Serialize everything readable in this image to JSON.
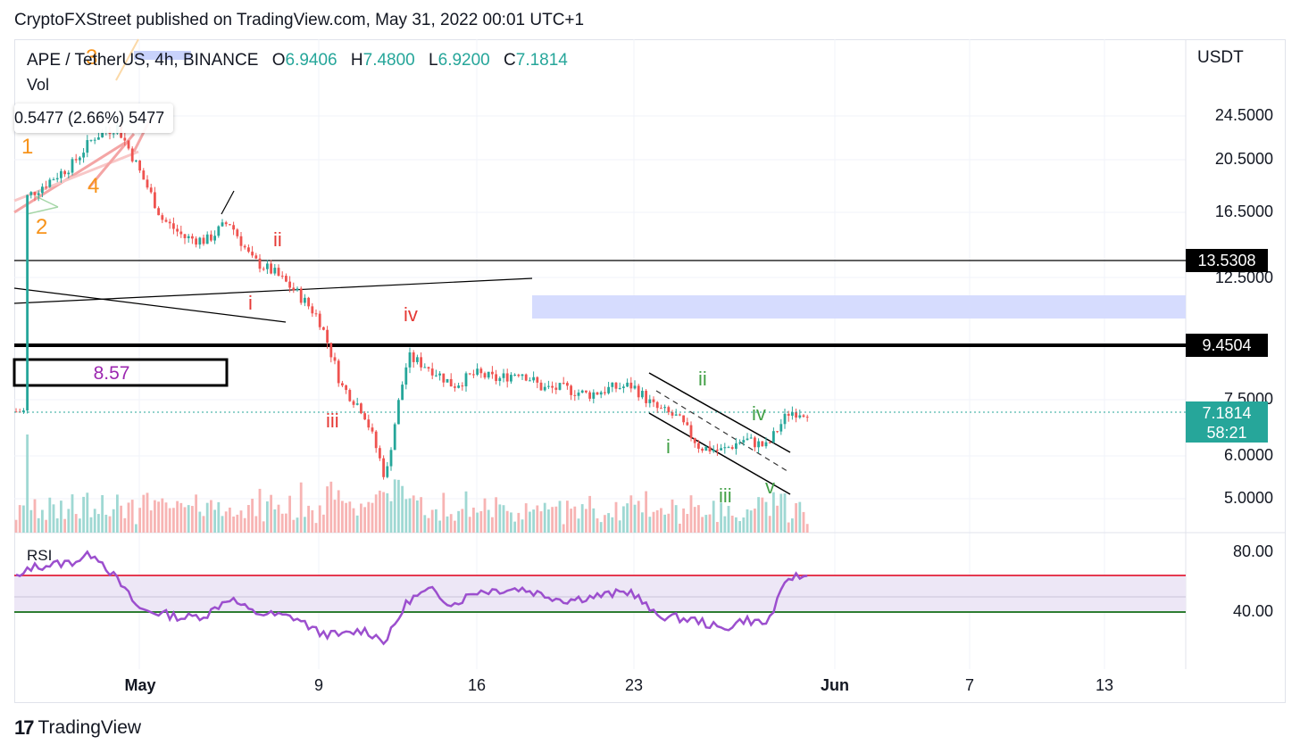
{
  "publisher_line": "CryptoFXStreet published on TradingView.com, May 31, 2022 00:01 UTC+1",
  "legend": {
    "symbol": "APE / TetherUS, 4h, BINANCE",
    "open_label": "O",
    "open": "6.9406",
    "high_label": "H",
    "high": "7.4800",
    "low_label": "L",
    "low": "6.9200",
    "close_label": "C",
    "close": "7.1814"
  },
  "volume_label": "Vol",
  "rsi_label": "RSI",
  "tooltip_text": "0.5477 (2.66%) 5477",
  "price_unit": "USDT",
  "footer_brand": "TradingView",
  "colors": {
    "up": "#26a69a",
    "down": "#ef5350",
    "rsi_line": "#9c4fce",
    "rsi_band": "#ede7f6",
    "zone": "#d6dcfe",
    "wave_red": "#e53935",
    "wave_green": "#43a047",
    "wave_orange": "#f7931a",
    "purple_text": "#9c27b0"
  },
  "tags": {
    "resistance": "13.5308",
    "support": "9.4504",
    "last_price": "7.1814",
    "countdown": "58:21"
  },
  "annotations": {
    "box_value": "8.57",
    "waves_red": [
      "i",
      "ii",
      "iii",
      "iv"
    ],
    "waves_green": [
      "i",
      "ii",
      "iii",
      "iv",
      "v"
    ],
    "waves_orange": [
      "2",
      "4",
      "3"
    ]
  },
  "chart_data": {
    "type": "candlestick",
    "title": "APE / TetherUS, 4h, BINANCE",
    "y_scale": "log",
    "price_ticks": [
      "24.5000",
      "20.5000",
      "16.5000",
      "12.5000",
      "7.5000",
      "6.0000",
      "5.0000"
    ],
    "rsi_ticks": [
      "80.00",
      "40.00"
    ],
    "rsi_levels": [
      70,
      30
    ],
    "x_ticks": [
      "May",
      "9",
      "16",
      "23",
      "Jun",
      "7",
      "13"
    ],
    "x_range": [
      "2022-04-26",
      "2022-06-15"
    ],
    "close_path": [
      [
        "2022-04-26",
        17.5
      ],
      [
        "2022-04-28",
        20.0
      ],
      [
        "2022-04-29",
        22.5
      ],
      [
        "2022-04-30",
        23.5
      ],
      [
        "2022-05-01",
        19.5
      ],
      [
        "2022-05-02",
        16.0
      ],
      [
        "2022-05-03",
        14.8
      ],
      [
        "2022-05-04",
        14.6
      ],
      [
        "2022-05-05",
        15.8
      ],
      [
        "2022-05-06",
        13.5
      ],
      [
        "2022-05-07",
        12.8
      ],
      [
        "2022-05-08",
        11.8
      ],
      [
        "2022-05-09",
        10.6
      ],
      [
        "2022-05-10",
        8.0
      ],
      [
        "2022-05-11",
        7.2
      ],
      [
        "2022-05-12",
        5.4
      ],
      [
        "2022-05-13",
        9.0
      ],
      [
        "2022-05-14",
        8.6
      ],
      [
        "2022-05-15",
        8.0
      ],
      [
        "2022-05-16",
        8.4
      ],
      [
        "2022-05-17",
        8.2
      ],
      [
        "2022-05-18",
        8.5
      ],
      [
        "2022-05-19",
        7.9
      ],
      [
        "2022-05-20",
        7.9
      ],
      [
        "2022-05-21",
        7.7
      ],
      [
        "2022-05-22",
        7.9
      ],
      [
        "2022-05-23",
        8.0
      ],
      [
        "2022-05-24",
        7.3
      ],
      [
        "2022-05-25",
        7.0
      ],
      [
        "2022-05-26",
        6.2
      ],
      [
        "2022-05-27",
        6.1
      ],
      [
        "2022-05-28",
        6.4
      ],
      [
        "2022-05-29",
        6.2
      ],
      [
        "2022-05-30",
        7.1814
      ]
    ],
    "rsi_path": [
      [
        "2022-04-26",
        70
      ],
      [
        "2022-04-28",
        74
      ],
      [
        "2022-04-29",
        80
      ],
      [
        "2022-04-30",
        62
      ],
      [
        "2022-05-01",
        42
      ],
      [
        "2022-05-03",
        36
      ],
      [
        "2022-05-04",
        38
      ],
      [
        "2022-05-05",
        50
      ],
      [
        "2022-05-06",
        40
      ],
      [
        "2022-05-08",
        36
      ],
      [
        "2022-05-09",
        26
      ],
      [
        "2022-05-10",
        24
      ],
      [
        "2022-05-11",
        28
      ],
      [
        "2022-05-12",
        20
      ],
      [
        "2022-05-13",
        48
      ],
      [
        "2022-05-14",
        55
      ],
      [
        "2022-05-15",
        45
      ],
      [
        "2022-05-16",
        54
      ],
      [
        "2022-05-18",
        56
      ],
      [
        "2022-05-20",
        48
      ],
      [
        "2022-05-22",
        52
      ],
      [
        "2022-05-23",
        54
      ],
      [
        "2022-05-24",
        38
      ],
      [
        "2022-05-26",
        34
      ],
      [
        "2022-05-27",
        28
      ],
      [
        "2022-05-28",
        35
      ],
      [
        "2022-05-29",
        32
      ],
      [
        "2022-05-30",
        64
      ]
    ]
  }
}
